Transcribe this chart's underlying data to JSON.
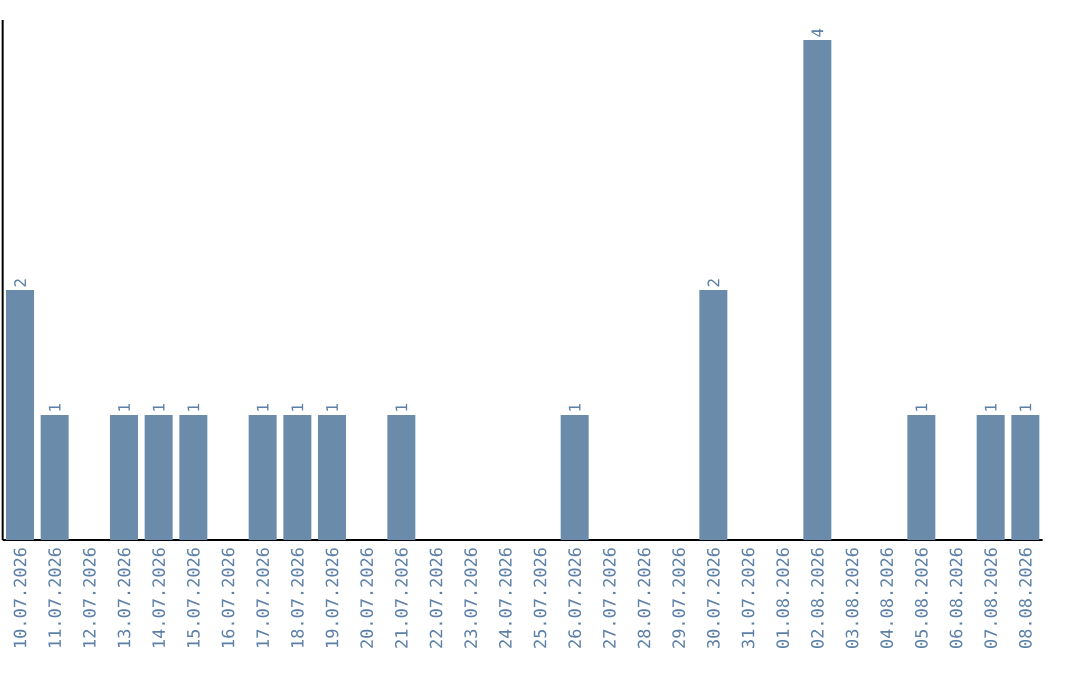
{
  "chart_data": {
    "type": "bar",
    "categories": [
      "10.07.2026",
      "11.07.2026",
      "12.07.2026",
      "13.07.2026",
      "14.07.2026",
      "15.07.2026",
      "16.07.2026",
      "17.07.2026",
      "18.07.2026",
      "19.07.2026",
      "20.07.2026",
      "21.07.2026",
      "22.07.2026",
      "23.07.2026",
      "24.07.2026",
      "25.07.2026",
      "26.07.2026",
      "27.07.2026",
      "28.07.2026",
      "29.07.2026",
      "30.07.2026",
      "31.07.2026",
      "01.08.2026",
      "02.08.2026",
      "03.08.2026",
      "04.08.2026",
      "05.08.2026",
      "06.08.2026",
      "07.08.2026",
      "08.08.2026"
    ],
    "values": [
      2,
      1,
      0,
      1,
      1,
      1,
      0,
      1,
      1,
      1,
      0,
      1,
      0,
      0,
      0,
      0,
      1,
      0,
      0,
      0,
      2,
      0,
      0,
      4,
      0,
      0,
      1,
      0,
      1,
      1
    ],
    "value_labels": [
      "2",
      "1",
      null,
      "1",
      "1",
      "1",
      null,
      "1",
      "1",
      "1",
      null,
      "1",
      null,
      null,
      null,
      null,
      "1",
      null,
      null,
      null,
      "2",
      null,
      null,
      "4",
      null,
      null,
      "1",
      null,
      "1",
      "1"
    ],
    "color": "#6a8caa",
    "tick_labels": "x",
    "grid": false
  }
}
